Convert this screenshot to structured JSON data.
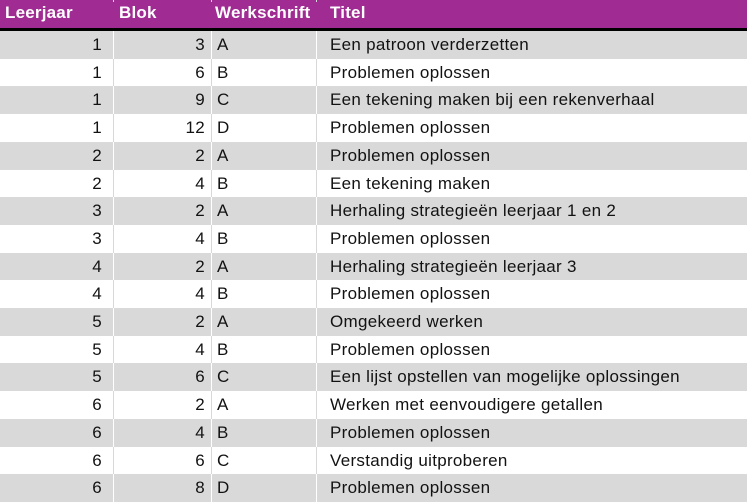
{
  "colors": {
    "header_bg": "#A02B93",
    "header_text": "#FFFFFF",
    "header_border": "#000000",
    "stripe_gray": "#D9D9D9",
    "stripe_white": "#FFFFFF",
    "gridline_on_white": "#D8D8D8",
    "gridline_on_gray": "#FFFFFF",
    "text": "#121212"
  },
  "table": {
    "headers": [
      "Leerjaar",
      "Blok",
      "Werkschrift",
      "Titel"
    ],
    "rows": [
      {
        "leerjaar": "1",
        "blok": "3",
        "werkschrift": "A",
        "titel": "Een patroon verderzetten"
      },
      {
        "leerjaar": "1",
        "blok": "6",
        "werkschrift": "B",
        "titel": "Problemen oplossen"
      },
      {
        "leerjaar": "1",
        "blok": "9",
        "werkschrift": "C",
        "titel": "Een tekening maken bij een rekenverhaal"
      },
      {
        "leerjaar": "1",
        "blok": "12",
        "werkschrift": "D",
        "titel": "Problemen oplossen"
      },
      {
        "leerjaar": "2",
        "blok": "2",
        "werkschrift": "A",
        "titel": "Problemen oplossen"
      },
      {
        "leerjaar": "2",
        "blok": "4",
        "werkschrift": "B",
        "titel": "Een tekening maken"
      },
      {
        "leerjaar": "3",
        "blok": "2",
        "werkschrift": "A",
        "titel": "Herhaling strategieën leerjaar 1 en 2"
      },
      {
        "leerjaar": "3",
        "blok": "4",
        "werkschrift": "B",
        "titel": "Problemen oplossen"
      },
      {
        "leerjaar": "4",
        "blok": "2",
        "werkschrift": "A",
        "titel": "Herhaling strategieën leerjaar 3"
      },
      {
        "leerjaar": "4",
        "blok": "4",
        "werkschrift": "B",
        "titel": "Problemen oplossen"
      },
      {
        "leerjaar": "5",
        "blok": "2",
        "werkschrift": "A",
        "titel": "Omgekeerd werken"
      },
      {
        "leerjaar": "5",
        "blok": "4",
        "werkschrift": "B",
        "titel": "Problemen oplossen"
      },
      {
        "leerjaar": "5",
        "blok": "6",
        "werkschrift": "C",
        "titel": "Een lijst opstellen van mogelijke oplossingen"
      },
      {
        "leerjaar": "6",
        "blok": "2",
        "werkschrift": "A",
        "titel": "Werken met eenvoudigere getallen"
      },
      {
        "leerjaar": "6",
        "blok": "4",
        "werkschrift": "B",
        "titel": "Problemen oplossen"
      },
      {
        "leerjaar": "6",
        "blok": "6",
        "werkschrift": "C",
        "titel": "Verstandig uitproberen"
      },
      {
        "leerjaar": "6",
        "blok": "8",
        "werkschrift": "D",
        "titel": "Problemen oplossen"
      }
    ]
  }
}
